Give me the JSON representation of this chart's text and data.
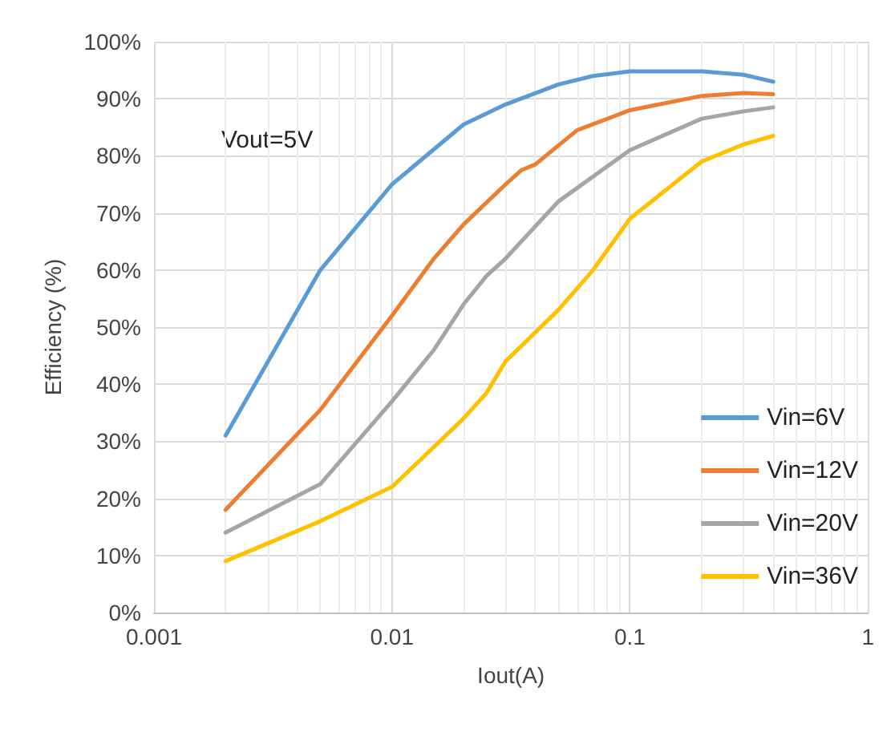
{
  "chart_data": {
    "type": "line",
    "xlabel": "Iout(A)",
    "ylabel": "Efficiency (%)",
    "log": "x",
    "xlim": [
      0.001,
      1
    ],
    "xticks": [
      0.001,
      0.01,
      0.1,
      1
    ],
    "ylim": [
      0,
      100
    ],
    "yticks": [
      {
        "value": 0,
        "label": "0%"
      },
      {
        "value": 10,
        "label": "10%"
      },
      {
        "value": 20,
        "label": "20%"
      },
      {
        "value": 30,
        "label": "30%"
      },
      {
        "value": 40,
        "label": "40%"
      },
      {
        "value": 50,
        "label": "50%"
      },
      {
        "value": 60,
        "label": "60%"
      },
      {
        "value": 70,
        "label": "70%"
      },
      {
        "value": 80,
        "label": "80%"
      },
      {
        "value": 90,
        "label": "90%"
      },
      {
        "value": 100,
        "label": "100%"
      }
    ],
    "grid": true,
    "legend": "right",
    "marker": "none",
    "line_style": "solid",
    "annotations": [
      "Vout=5V"
    ],
    "series": [
      {
        "name": "Vin=6V",
        "color": "#5b9bd5",
        "x": [
          0.002,
          0.005,
          0.01,
          0.02,
          0.03,
          0.05,
          0.07,
          0.1,
          0.2,
          0.3,
          0.4
        ],
        "values": [
          31,
          60,
          75,
          85.5,
          89,
          92.5,
          94,
          94.8,
          94.8,
          94.2,
          93
        ]
      },
      {
        "name": "Vin=12V",
        "color": "#ed7d31",
        "x": [
          0.002,
          0.005,
          0.01,
          0.015,
          0.02,
          0.03,
          0.035,
          0.04,
          0.06,
          0.1,
          0.2,
          0.3,
          0.4
        ],
        "values": [
          18,
          35.5,
          52,
          62,
          68,
          75,
          77.5,
          78.5,
          84.5,
          88,
          90.5,
          91,
          90.8
        ]
      },
      {
        "name": "Vin=20V",
        "color": "#a5a5a5",
        "x": [
          0.002,
          0.005,
          0.01,
          0.015,
          0.02,
          0.025,
          0.03,
          0.05,
          0.1,
          0.2,
          0.3,
          0.4
        ],
        "values": [
          14,
          22.5,
          37,
          46,
          54,
          59,
          62,
          72,
          81,
          86.5,
          87.8,
          88.5
        ]
      },
      {
        "name": "Vin=36V",
        "color": "#ffc000",
        "x": [
          0.002,
          0.005,
          0.01,
          0.015,
          0.02,
          0.025,
          0.03,
          0.05,
          0.07,
          0.1,
          0.2,
          0.3,
          0.4
        ],
        "values": [
          9,
          16,
          22,
          29,
          34,
          38.5,
          44,
          53,
          60,
          69,
          79,
          82,
          83.5
        ]
      }
    ]
  }
}
